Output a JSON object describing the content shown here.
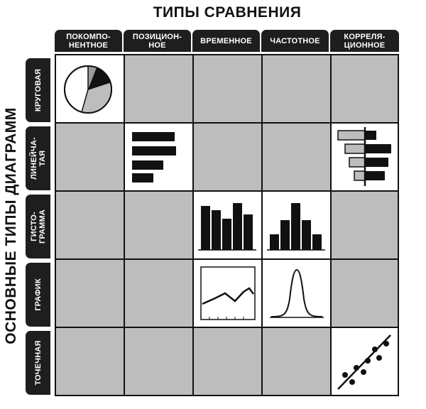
{
  "title_top": "ТИПЫ СРАВНЕНИЯ",
  "title_left": "ОСНОВНЫЕ ТИПЫ ДИАГРАММ",
  "columns": [
    "ПОКОМПО-\nНЕНТНОЕ",
    "ПОЗИЦИОН-\nНОЕ",
    "ВРЕМЕННОЕ",
    "ЧАСТОТНОЕ",
    "КОРРЕЛЯ-\nЦИОННОЕ"
  ],
  "rows": [
    "КРУГОВАЯ",
    "ЛИНЕЙЧА-\nТАЯ",
    "ГИСТО-\nГРАММА",
    "ГРАФИК",
    "ТОЧЕЧНАЯ"
  ],
  "colors": {
    "header_bg": "#1e1e1e",
    "cell_bg": "#bdbdbd",
    "active_bg": "#ffffff",
    "ink": "#111111"
  }
}
